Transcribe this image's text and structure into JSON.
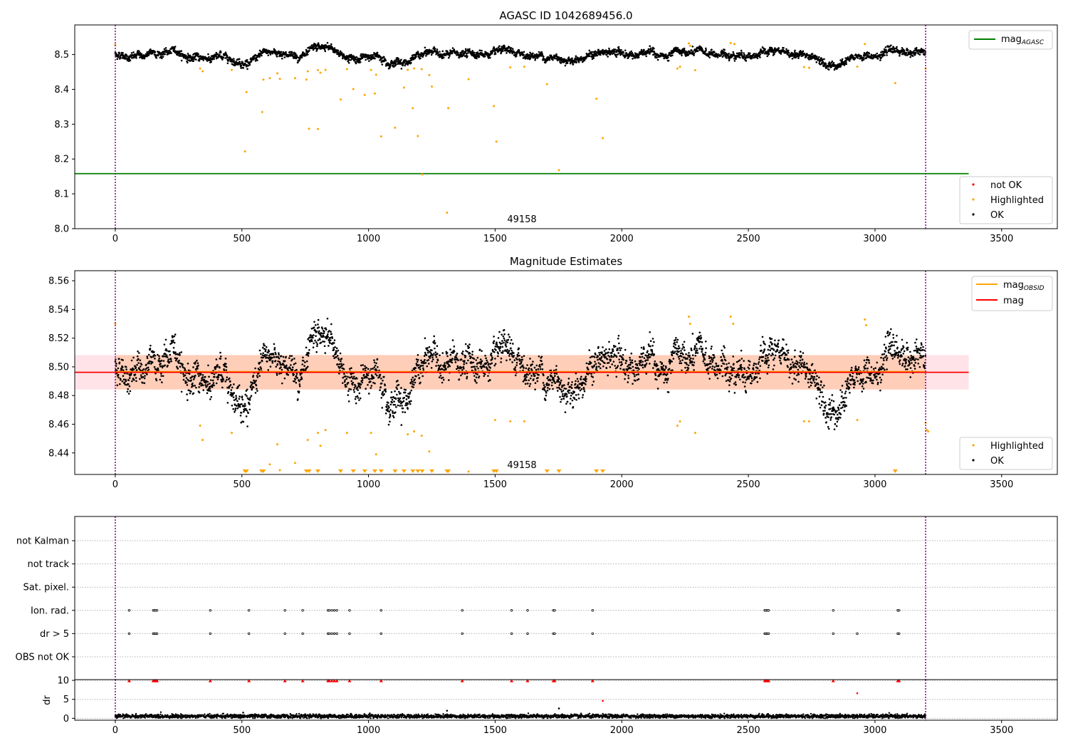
{
  "figure": {
    "colors": {
      "ok": "#000000",
      "highlighted": "#ffa500",
      "not_ok": "#ff0000",
      "agasc_line": "#008000",
      "obsid_line": "#ffa500",
      "mag_line": "#ff0000",
      "band_red": "#ffc0cb",
      "band_orange": "#ffb380",
      "marker_line": "#800080"
    }
  },
  "chart_data": [
    {
      "id": "agasc-panel",
      "type": "scatter",
      "title": "AGASC ID 1042689456.0",
      "xlim": [
        -160,
        3720
      ],
      "ylim": [
        8.0,
        8.585
      ],
      "xticks": [
        0,
        500,
        1000,
        1500,
        2000,
        2500,
        3000,
        3500
      ],
      "yticks": [
        "8.0",
        "8.1",
        "8.2",
        "8.3",
        "8.4",
        "8.5"
      ],
      "obsid_annotation": {
        "text": "49158",
        "x": 1600,
        "y": 8.01
      },
      "obsid_boundaries": [
        0,
        3200
      ],
      "lines": [
        {
          "name": "mag_AGASC",
          "label": "mag",
          "subscript": "AGASC",
          "y": 8.158,
          "x": [
            -160,
            3370
          ]
        }
      ],
      "legend_top": [
        "mag_AGASC"
      ],
      "legend_bottom": [
        "not OK",
        "Highlighted",
        "OK"
      ],
      "highlighted_points": [
        [
          0,
          8.528
        ],
        [
          335,
          8.46
        ],
        [
          345,
          8.452
        ],
        [
          460,
          8.456
        ],
        [
          512,
          8.222
        ],
        [
          518,
          8.392
        ],
        [
          580,
          8.335
        ],
        [
          585,
          8.428
        ],
        [
          610,
          8.432
        ],
        [
          640,
          8.446
        ],
        [
          650,
          8.43
        ],
        [
          710,
          8.432
        ],
        [
          755,
          8.428
        ],
        [
          760,
          8.452
        ],
        [
          765,
          8.287
        ],
        [
          800,
          8.286
        ],
        [
          800,
          8.455
        ],
        [
          810,
          8.448
        ],
        [
          830,
          8.456
        ],
        [
          890,
          8.371
        ],
        [
          915,
          8.458
        ],
        [
          940,
          8.401
        ],
        [
          985,
          8.384
        ],
        [
          1010,
          8.456
        ],
        [
          1025,
          8.388
        ],
        [
          1030,
          8.442
        ],
        [
          1050,
          8.265
        ],
        [
          1105,
          8.29
        ],
        [
          1140,
          8.405
        ],
        [
          1155,
          8.456
        ],
        [
          1175,
          8.346
        ],
        [
          1180,
          8.46
        ],
        [
          1195,
          8.266
        ],
        [
          1210,
          8.458
        ],
        [
          1212,
          8.156
        ],
        [
          1240,
          8.441
        ],
        [
          1250,
          8.408
        ],
        [
          1310,
          8.046
        ],
        [
          1315,
          8.346
        ],
        [
          1395,
          8.429
        ],
        [
          1495,
          8.352
        ],
        [
          1505,
          8.25
        ],
        [
          1560,
          8.463
        ],
        [
          1615,
          8.465
        ],
        [
          1705,
          8.415
        ],
        [
          1752,
          8.168
        ],
        [
          1900,
          8.373
        ],
        [
          1925,
          8.26
        ],
        [
          2220,
          8.46
        ],
        [
          2230,
          8.465
        ],
        [
          2265,
          8.532
        ],
        [
          2270,
          8.525
        ],
        [
          2290,
          8.455
        ],
        [
          2430,
          8.533
        ],
        [
          2445,
          8.53
        ],
        [
          2720,
          8.464
        ],
        [
          2740,
          8.462
        ],
        [
          2930,
          8.465
        ],
        [
          2960,
          8.53
        ],
        [
          3080,
          8.418
        ],
        [
          3200,
          8.46
        ]
      ]
    },
    {
      "id": "magnitude-panel",
      "type": "scatter",
      "title": "Magnitude Estimates",
      "xlim": [
        -160,
        3720
      ],
      "ylim": [
        8.425,
        8.567
      ],
      "xticks": [
        0,
        500,
        1000,
        1500,
        2000,
        2500,
        3000,
        3500
      ],
      "yticks": [
        "8.44",
        "8.46",
        "8.48",
        "8.50",
        "8.52",
        "8.54",
        "8.56"
      ],
      "obsid_annotation": {
        "text": "49158",
        "x": 1600,
        "y": 8.429
      },
      "obsid_boundaries": [
        0,
        3200
      ],
      "lines": [
        {
          "name": "mag_OBSID",
          "label": "mag",
          "subscript": "OBSID",
          "y": 8.4962,
          "x": [
            0,
            3200
          ],
          "band": [
            8.4842,
            8.5082
          ]
        },
        {
          "name": "mag",
          "label": "mag",
          "y": 8.4962,
          "x": [
            -160,
            3370
          ],
          "band": [
            8.4842,
            8.5082
          ]
        }
      ],
      "legend_top": [
        "mag_OBSID",
        "mag"
      ],
      "legend_bottom": [
        "Highlighted",
        "OK"
      ],
      "highlighted_points": [
        [
          0,
          8.53
        ],
        [
          335,
          8.459
        ],
        [
          345,
          8.449
        ],
        [
          460,
          8.454
        ],
        [
          610,
          8.432
        ],
        [
          640,
          8.446
        ],
        [
          650,
          8.428
        ],
        [
          710,
          8.433
        ],
        [
          760,
          8.449
        ],
        [
          800,
          8.454
        ],
        [
          810,
          8.445
        ],
        [
          830,
          8.456
        ],
        [
          915,
          8.454
        ],
        [
          1010,
          8.454
        ],
        [
          1030,
          8.439
        ],
        [
          1155,
          8.453
        ],
        [
          1180,
          8.455
        ],
        [
          1210,
          8.452
        ],
        [
          1240,
          8.441
        ],
        [
          1395,
          8.427
        ],
        [
          1500,
          8.463
        ],
        [
          1560,
          8.462
        ],
        [
          1615,
          8.462
        ],
        [
          2220,
          8.459
        ],
        [
          2230,
          8.462
        ],
        [
          2265,
          8.535
        ],
        [
          2270,
          8.53
        ],
        [
          2290,
          8.454
        ],
        [
          2430,
          8.535
        ],
        [
          2440,
          8.53
        ],
        [
          2720,
          8.462
        ],
        [
          2740,
          8.462
        ],
        [
          2930,
          8.463
        ],
        [
          2960,
          8.533
        ],
        [
          2965,
          8.529
        ],
        [
          3200,
          8.461
        ],
        [
          3205,
          8.456
        ],
        [
          3210,
          8.455
        ]
      ],
      "below_range_markers": [
        512,
        518,
        578,
        585,
        755,
        765,
        800,
        890,
        940,
        985,
        1025,
        1050,
        1105,
        1140,
        1175,
        1195,
        1212,
        1250,
        1310,
        1315,
        1495,
        1505,
        1705,
        1752,
        1900,
        1925,
        3080
      ]
    },
    {
      "id": "flags-panel",
      "type": "scatter",
      "xlim": [
        -160,
        3720
      ],
      "obsid_boundaries": [
        0,
        3200
      ],
      "categories": [
        "not Kalman",
        "not track",
        "Sat. pixel.",
        "Ion. rad.",
        "dr > 5",
        "OBS not OK"
      ],
      "ion_rad_x": [
        55,
        150,
        155,
        160,
        165,
        375,
        528,
        670,
        740,
        840,
        845,
        855,
        865,
        875,
        925,
        1050,
        1370,
        1565,
        1628,
        1730,
        1735,
        1885,
        2565,
        2570,
        2575,
        2580,
        2835,
        3090,
        3095
      ],
      "dr_gt5_x": [
        55,
        150,
        155,
        160,
        165,
        375,
        528,
        670,
        740,
        840,
        845,
        855,
        865,
        875,
        925,
        1050,
        1370,
        1565,
        1628,
        1730,
        1735,
        1885,
        2565,
        2570,
        2575,
        2580,
        2835,
        2930,
        3090,
        3095
      ]
    },
    {
      "id": "dr-panel",
      "type": "scatter",
      "ylabel": "dr",
      "xlim": [
        -160,
        3720
      ],
      "ylim": [
        -0.5,
        10.2
      ],
      "yticks": [
        "0",
        "5",
        "10"
      ],
      "xticks": [
        0,
        500,
        1000,
        1500,
        2000,
        2500,
        3000,
        3500
      ],
      "obsid_boundaries": [
        0,
        3200
      ],
      "clipped_x": [
        55,
        150,
        155,
        160,
        165,
        375,
        528,
        670,
        740,
        840,
        845,
        855,
        865,
        875,
        925,
        1050,
        1370,
        1565,
        1628,
        1730,
        1735,
        1885,
        2565,
        2570,
        2575,
        2580,
        2835,
        3090,
        3095
      ],
      "not_ok_points": [
        [
          1925,
          4.6
        ],
        [
          2930,
          6.6
        ]
      ],
      "outlier_points": [
        [
          505,
          1.5
        ],
        [
          930,
          1.2
        ],
        [
          1310,
          2.0
        ],
        [
          1752,
          2.6
        ],
        [
          1005,
          1.3
        ]
      ]
    }
  ]
}
